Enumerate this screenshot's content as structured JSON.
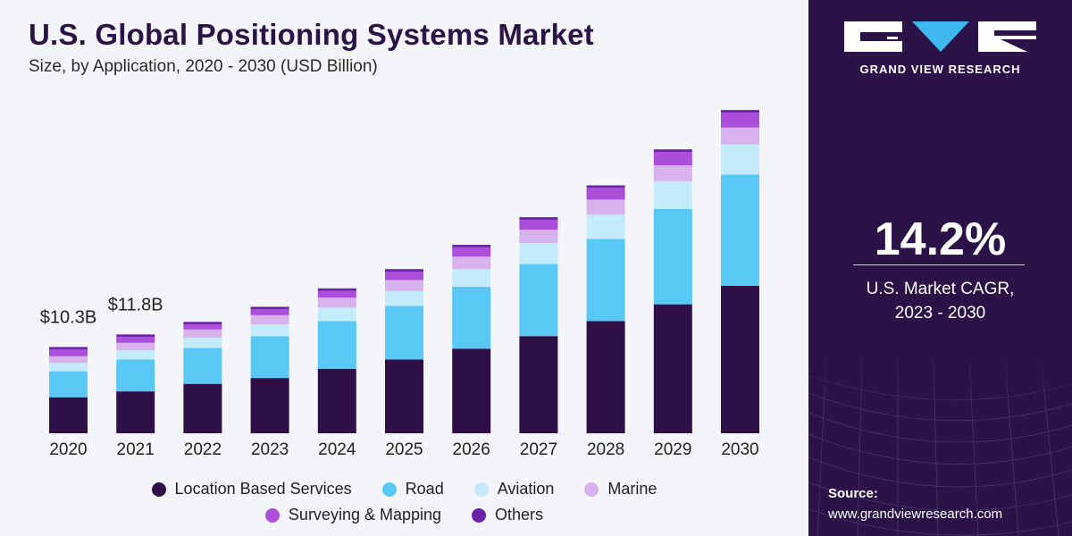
{
  "title": "U.S. Global Positioning Systems Market",
  "subtitle": "Size, by Application, 2020 - 2030 (USD Billion)",
  "chart_data": {
    "type": "bar",
    "stacked": true,
    "categories": [
      "2020",
      "2021",
      "2022",
      "2023",
      "2024",
      "2025",
      "2026",
      "2027",
      "2028",
      "2029",
      "2030"
    ],
    "series": [
      {
        "name": "Location Based Services",
        "color": "#2e1047",
        "values": [
          4.3,
          5.0,
          5.9,
          6.6,
          7.7,
          8.8,
          10.1,
          11.6,
          13.4,
          15.4,
          17.6
        ]
      },
      {
        "name": "Road",
        "color": "#5ac8f5",
        "values": [
          3.1,
          3.8,
          4.3,
          5.0,
          5.7,
          6.4,
          7.4,
          8.6,
          9.8,
          11.4,
          13.3
        ]
      },
      {
        "name": "Aviation",
        "color": "#c4ebfa",
        "values": [
          1.0,
          1.1,
          1.2,
          1.4,
          1.6,
          1.8,
          2.1,
          2.5,
          2.9,
          3.3,
          3.6
        ]
      },
      {
        "name": "Marine",
        "color": "#d7b2ec",
        "values": [
          0.8,
          0.9,
          1.0,
          1.1,
          1.2,
          1.3,
          1.5,
          1.6,
          1.8,
          1.9,
          2.0
        ]
      },
      {
        "name": "Surveying & Mapping",
        "color": "#ab4fdb",
        "values": [
          0.8,
          0.7,
          0.6,
          0.7,
          0.8,
          1.0,
          1.1,
          1.2,
          1.4,
          1.6,
          1.8
        ]
      },
      {
        "name": "Others",
        "color": "#6a23a6",
        "values": [
          0.3,
          0.3,
          0.3,
          0.3,
          0.3,
          0.3,
          0.3,
          0.3,
          0.3,
          0.3,
          0.3
        ]
      }
    ],
    "annotations": [
      {
        "category": "2020",
        "label": "$10.3B"
      },
      {
        "category": "2021",
        "label": "$11.8B"
      }
    ],
    "ylim": [
      0,
      40
    ],
    "grid": false,
    "legend": "bottom"
  },
  "legend": {
    "row1": [
      "Location Based Services",
      "Road",
      "Aviation",
      "Marine"
    ],
    "row2": [
      "Surveying & Mapping",
      "Others"
    ]
  },
  "sidebar": {
    "brand": "GRAND VIEW RESEARCH",
    "cagr_value": "14.2%",
    "cagr_label_1": "U.S. Market CAGR,",
    "cagr_label_2": "2023 - 2030",
    "source_label": "Source:",
    "source_url": "www.grandviewresearch.com"
  },
  "colors": {
    "panel": "#2b1348",
    "title": "#2a1445"
  }
}
